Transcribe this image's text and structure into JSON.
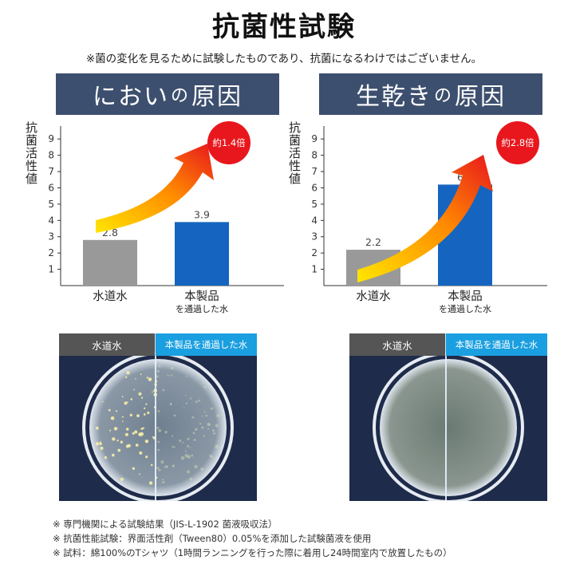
{
  "title": "抗菌性試験",
  "disclaimer": "※菌の変化を見るために試験したものであり、抗菌になるわけではございません。",
  "ylabel": "抗菌活性値",
  "colors": {
    "banner": "#3d4f6e",
    "tap_bar": "#999999",
    "product_bar": "#1565c0",
    "badge": "#e8171d",
    "filtered_label": "#1a9fe0"
  },
  "panels": [
    {
      "banner_main1": "におい",
      "banner_small": "の",
      "banner_main2": "原因",
      "ratio": "約1.4倍"
    },
    {
      "banner_main1": "生乾き",
      "banner_small": "の",
      "banner_main2": "原因",
      "ratio": "約2.8倍"
    }
  ],
  "chart_data": [
    {
      "type": "bar",
      "title": "においの原因",
      "ylabel": "抗菌活性値",
      "categories": [
        "水道水",
        "本製品"
      ],
      "category_sublabels": [
        "",
        "を通過した水"
      ],
      "values": [
        2.8,
        3.9
      ],
      "yticks": [
        1,
        2,
        3,
        4,
        5,
        6,
        7,
        8,
        9
      ],
      "ylim": [
        0,
        9.5
      ],
      "annotation": "約1.4倍"
    },
    {
      "type": "bar",
      "title": "生乾きの原因",
      "ylabel": "抗菌活性値",
      "categories": [
        "水道水",
        "本製品"
      ],
      "category_sublabels": [
        "",
        "を通過した水"
      ],
      "values": [
        2.2,
        6.2
      ],
      "yticks": [
        1,
        2,
        3,
        4,
        5,
        6,
        7,
        8,
        9
      ],
      "ylim": [
        0,
        9.5
      ],
      "annotation": "約2.8倍"
    }
  ],
  "photos": {
    "tap_label": "水道水",
    "filtered_label": "本製品を通過した水"
  },
  "notes": [
    "※ 専門機関による試験結果（JIS-L-1902 菌液吸収法）",
    "※ 抗菌性能試験：界面活性剤（Tween80）0.05%を添加した試験菌液を使用",
    "※ 試料：綿100%のTシャツ（1時間ランニングを行った際に着用し24時間室内で放置したもの）"
  ]
}
